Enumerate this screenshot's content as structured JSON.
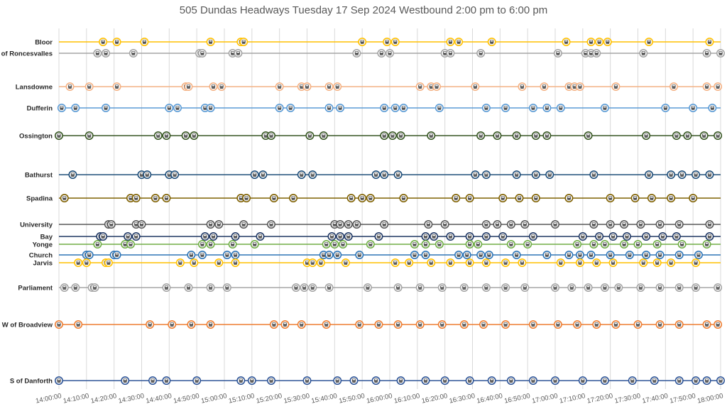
{
  "chart_data": {
    "type": "scatter",
    "title": "505 Dundas Headways Tuesday 17 Sep 2024 Westbound 2:00 pm to 6:00 pm",
    "xlabel": "",
    "ylabel": "",
    "x_range": [
      "14:00:00",
      "18:00:00"
    ],
    "x_ticks": [
      "14:00:00",
      "14:10:00",
      "14:20:00",
      "14:30:00",
      "14:40:00",
      "14:50:00",
      "15:00:00",
      "15:10:00",
      "15:20:00",
      "15:30:00",
      "15:40:00",
      "15:50:00",
      "16:00:00",
      "16:10:00",
      "16:20:00",
      "16:30:00",
      "16:40:00",
      "16:50:00",
      "17:00:00",
      "17:10:00",
      "17:20:00",
      "17:30:00",
      "17:40:00",
      "17:50:00",
      "18:00:00"
    ],
    "grid": true,
    "legend": "none",
    "marker_icon": "streetcar-icon",
    "series": [
      {
        "name": "Bloor",
        "color": "#FFC000",
        "times": [
          "14:16",
          "14:21",
          "14:31",
          "14:55",
          "15:06",
          "15:07",
          "15:50",
          "15:59",
          "16:02",
          "16:22",
          "16:25",
          "16:37",
          "17:04",
          "17:13",
          "17:16",
          "17:19",
          "17:34",
          "17:56"
        ]
      },
      {
        "name": "E of Roncesvalles",
        "color": "#A5A5A5",
        "times": [
          "14:14",
          "14:17",
          "14:27",
          "14:51",
          "14:52",
          "15:03",
          "15:05",
          "15:48",
          "15:57",
          "16:00",
          "16:20",
          "16:22",
          "16:33",
          "17:01",
          "17:11",
          "17:13",
          "17:15",
          "17:32",
          "17:55",
          "18:00"
        ]
      },
      {
        "name": "Lansdowne",
        "color": "#F4B183",
        "times": [
          "14:04",
          "14:11",
          "14:21",
          "14:46",
          "14:47",
          "14:56",
          "14:59",
          "15:20",
          "15:28",
          "15:30",
          "15:38",
          "15:41",
          "16:11",
          "16:15",
          "16:17",
          "16:31",
          "16:48",
          "16:56",
          "17:05",
          "17:07",
          "17:09",
          "17:22",
          "17:43",
          "17:55",
          "17:59"
        ]
      },
      {
        "name": "Dufferin",
        "color": "#5B9BD5",
        "times": [
          "14:01",
          "14:06",
          "14:17",
          "14:40",
          "14:43",
          "14:53",
          "14:55",
          "15:20",
          "15:24",
          "15:38",
          "15:42",
          "15:58",
          "16:02",
          "16:05",
          "16:18",
          "16:35",
          "16:42",
          "16:52",
          "16:57",
          "17:02",
          "17:18",
          "17:40",
          "17:50",
          "17:57"
        ]
      },
      {
        "name": "Ossington",
        "color": "#375623",
        "times": [
          "14:00",
          "14:11",
          "14:36",
          "14:39",
          "14:46",
          "14:49",
          "15:15",
          "15:17",
          "15:31",
          "15:36",
          "15:58",
          "16:01",
          "16:04",
          "16:15",
          "16:33",
          "16:39",
          "16:46",
          "16:53",
          "16:57",
          "17:12",
          "17:33",
          "17:44",
          "17:48",
          "17:54",
          "17:59"
        ]
      },
      {
        "name": "Bathurst",
        "color": "#1F4E79",
        "times": [
          "14:05",
          "14:30",
          "14:32",
          "14:40",
          "14:42",
          "15:11",
          "15:14",
          "15:28",
          "15:32",
          "15:55",
          "15:58",
          "16:03",
          "16:31",
          "16:35",
          "16:46",
          "16:53",
          "16:58",
          "17:14",
          "17:34",
          "17:42",
          "17:46",
          "17:51",
          "17:56"
        ]
      },
      {
        "name": "Spadina",
        "color": "#7F6000",
        "times": [
          "14:02",
          "14:26",
          "14:28",
          "14:35",
          "14:39",
          "15:06",
          "15:08",
          "15:18",
          "15:25",
          "15:46",
          "15:50",
          "15:53",
          "16:05",
          "16:24",
          "16:29",
          "16:41",
          "16:47",
          "16:53",
          "17:05",
          "17:20",
          "17:29",
          "17:35",
          "17:42",
          "17:50"
        ]
      },
      {
        "name": "University",
        "color": "#595959",
        "times": [
          "14:18",
          "14:19",
          "14:28",
          "14:30",
          "14:55",
          "14:58",
          "15:07",
          "15:17",
          "15:40",
          "15:42",
          "15:45",
          "15:48",
          "15:58",
          "16:14",
          "16:20",
          "16:35",
          "16:39",
          "16:44",
          "16:49",
          "17:00",
          "17:14",
          "17:20",
          "17:25",
          "17:31",
          "17:38",
          "17:45",
          "17:56"
        ]
      },
      {
        "name": "Bay",
        "color": "#203864",
        "times": [
          "14:15",
          "14:16",
          "14:25",
          "14:28",
          "14:53",
          "14:56",
          "15:04",
          "15:13",
          "15:39",
          "15:42",
          "15:45",
          "15:56",
          "16:13",
          "16:16",
          "16:22",
          "16:29",
          "16:35",
          "16:41",
          "16:52",
          "17:10",
          "17:16",
          "17:21",
          "17:26",
          "17:33",
          "17:39",
          "17:44",
          "17:56"
        ]
      },
      {
        "name": "Yonge",
        "color": "#70AD47",
        "times": [
          "14:14",
          "14:24",
          "14:26",
          "14:52",
          "14:55",
          "15:03",
          "15:11",
          "15:37",
          "15:40",
          "15:43",
          "15:53",
          "16:09",
          "16:13",
          "16:18",
          "16:29",
          "16:32",
          "16:44",
          "16:50",
          "17:08",
          "17:14",
          "17:18",
          "17:25",
          "17:30",
          "17:37",
          "17:46",
          "17:55"
        ]
      },
      {
        "name": "Church",
        "color": "#2E75B6",
        "times": [
          "14:10",
          "14:11",
          "14:20",
          "14:21",
          "14:48",
          "14:52",
          "15:01",
          "15:04",
          "15:36",
          "15:38",
          "15:41",
          "15:49",
          "16:09",
          "16:13",
          "16:25",
          "16:28",
          "16:33",
          "16:36",
          "16:46",
          "16:57",
          "17:05",
          "17:09",
          "17:13",
          "17:20",
          "17:27",
          "17:33",
          "17:38",
          "17:45",
          "17:52"
        ]
      },
      {
        "name": "Jarvis",
        "color": "#FFC000",
        "times": [
          "14:07",
          "14:10",
          "14:17",
          "14:18",
          "14:44",
          "14:49",
          "14:58",
          "15:04",
          "15:30",
          "15:32",
          "15:35",
          "15:44",
          "16:02",
          "16:07",
          "16:15",
          "16:22",
          "16:29",
          "16:35",
          "16:42",
          "16:48",
          "17:02",
          "17:09",
          "17:15",
          "17:21",
          "17:32",
          "17:37",
          "17:42",
          "17:51"
        ]
      },
      {
        "name": "Parliament",
        "color": "#A5A5A5",
        "times": [
          "14:02",
          "14:06",
          "14:12",
          "14:13",
          "14:39",
          "14:47",
          "14:55",
          "15:01",
          "15:26",
          "15:29",
          "15:32",
          "15:38",
          "15:52",
          "16:03",
          "16:11",
          "16:19",
          "16:27",
          "16:35",
          "16:42",
          "16:49",
          "17:00",
          "17:06",
          "17:12",
          "17:18",
          "17:23",
          "17:31",
          "17:38",
          "17:45",
          "17:51",
          "17:59"
        ]
      },
      {
        "name": "W of Broadview",
        "color": "#ED7D31",
        "times": [
          "14:00",
          "14:07",
          "14:33",
          "14:41",
          "14:48",
          "14:55",
          "15:18",
          "15:22",
          "15:28",
          "15:37",
          "15:49",
          "15:56",
          "16:03",
          "16:11",
          "16:19",
          "16:27",
          "16:34",
          "16:42",
          "16:52",
          "17:01",
          "17:08",
          "17:15",
          "17:22",
          "17:30",
          "17:38",
          "17:45",
          "17:55",
          "17:59"
        ]
      },
      {
        "name": "S of Danforth",
        "color": "#2F5597",
        "times": [
          "14:00",
          "14:24",
          "14:34",
          "14:39",
          "14:50",
          "15:06",
          "15:10",
          "15:17",
          "15:30",
          "15:41",
          "15:47",
          "15:55",
          "16:04",
          "16:13",
          "16:20",
          "16:29",
          "16:37",
          "16:44",
          "16:52",
          "17:00",
          "17:10",
          "17:18",
          "17:28",
          "17:36",
          "17:45",
          "17:51",
          "17:55",
          "18:00"
        ]
      }
    ]
  }
}
